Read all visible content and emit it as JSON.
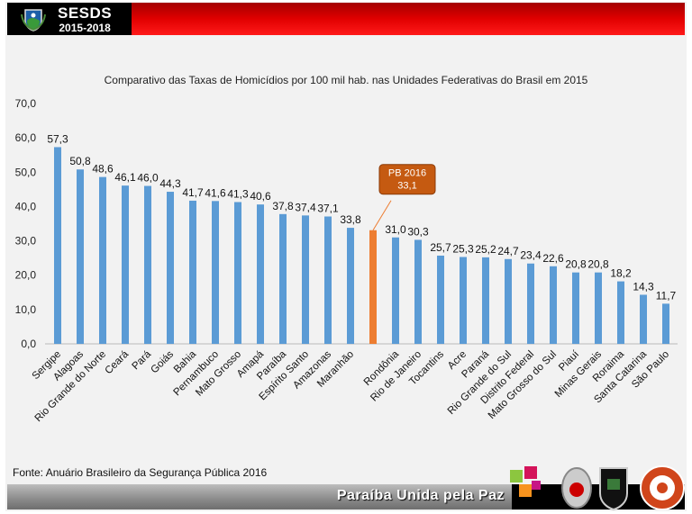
{
  "header": {
    "title": "SESDS",
    "years": "2015-2018"
  },
  "source": "Fonte: Anuário Brasileiro da Segurança Pública 2016",
  "footer": {
    "slogan": "Paraíba  Unida pela Paz"
  },
  "colors": {
    "bar": "#5b9bd5",
    "highlight": "#ed7d31",
    "callout": "#c55a11",
    "header_red": "#e10000"
  },
  "chart_data": {
    "type": "bar",
    "title": "Comparativo das Taxas de Homicídios por 100 mil hab. nas Unidades Federativas do Brasil em 2015",
    "ylim": [
      0,
      70
    ],
    "yticks": [
      "0,0",
      "10,0",
      "20,0",
      "30,0",
      "40,0",
      "50,0",
      "60,0",
      "70,0"
    ],
    "categories": [
      "Sergipe",
      "Alagoas",
      "Rio Grande do Norte",
      "Ceará",
      "Pará",
      "Goiás",
      "Bahia",
      "Pernambuco",
      "Mato Grosso",
      "Amapá",
      "Paraíba",
      "Espírito Santo",
      "Amazonas",
      "Maranhão",
      "PB 2016",
      "Rondônia",
      "Rio de Janeiro",
      "Tocantins",
      "Acre",
      "Paraná",
      "Rio Grande do Sul",
      "Distrito Federal",
      "Mato Grosso do Sul",
      "Piauí",
      "Minas Gerais",
      "Roraima",
      "Santa Catarina",
      "São Paulo"
    ],
    "values": [
      57.3,
      50.8,
      48.6,
      46.1,
      46.0,
      44.3,
      41.7,
      41.6,
      41.3,
      40.6,
      37.8,
      37.4,
      37.1,
      33.8,
      33.1,
      31.0,
      30.3,
      25.7,
      25.3,
      25.2,
      24.7,
      23.4,
      22.6,
      20.8,
      20.8,
      18.2,
      14.3,
      11.7
    ],
    "labels": [
      "57,3",
      "50,8",
      "48,6",
      "46,1",
      "46,0",
      "44,3",
      "41,7",
      "41,6",
      "41,3",
      "40,6",
      "37,8",
      "37,4",
      "37,1",
      "33,8",
      "",
      "31,0",
      "30,3",
      "25,7",
      "25,3",
      "25,2",
      "24,7",
      "23,4",
      "22,6",
      "20,8",
      "20,8",
      "18,2",
      "14,3",
      "11,7"
    ],
    "highlight_index": 14,
    "callout": {
      "line1": "PB 2016",
      "line2": "33,1"
    }
  }
}
